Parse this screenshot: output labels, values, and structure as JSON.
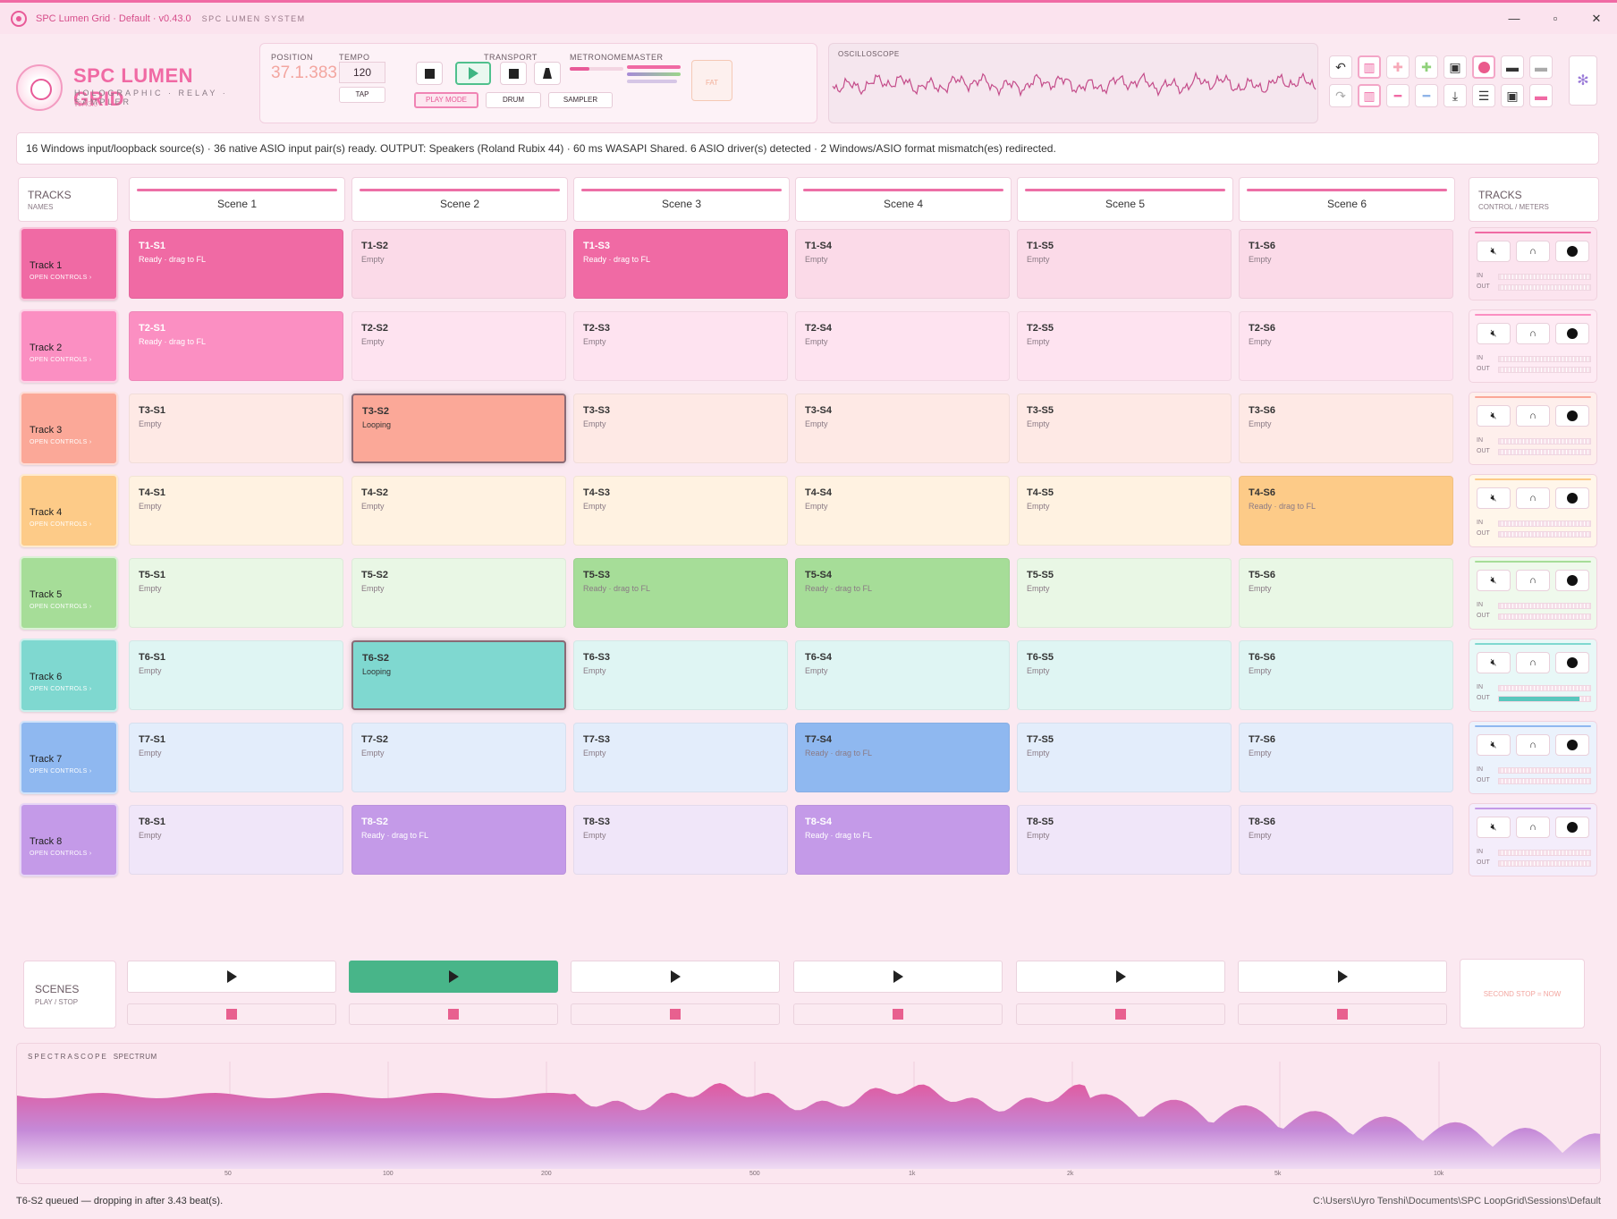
{
  "window": {
    "title": "SPC Lumen Grid · Default · v0.43.0",
    "subtitle": "SPC LUMEN SYSTEM",
    "controls": {
      "minimize": "—",
      "maximize": "▫",
      "close": "✕"
    }
  },
  "logo": {
    "name": "SPC LUMEN GRID",
    "tagline": "HOLOGRAPHIC · RELAY · SAMPLER",
    "version": "v0.43.0"
  },
  "transport": {
    "position_label": "POSITION",
    "position_value": "37.1.383",
    "tempo_label": "TEMPO",
    "tempo_value": "120",
    "tap_label": "TAP",
    "transport_label": "TRANSPORT",
    "modes": [
      "PLAY MODE",
      "DRUM",
      "SAMPLER"
    ],
    "active_mode": "PLAY MODE",
    "metronome_label": "METRONOME",
    "master_label": "MASTER",
    "fat_label": "FAT"
  },
  "oscilloscope": {
    "label": "OSCILLOSCOPE"
  },
  "status_message": "16 Windows input/loopback source(s) · 36 native ASIO input pair(s) ready. OUTPUT: Speakers (Roland Rubix 44) · 60 ms WASAPI Shared. 6 ASIO driver(s) detected · 2 Windows/ASIO format mismatch(es) redirected.",
  "grid": {
    "tracks_header": {
      "title": "TRACKS",
      "subtitle": "NAMES"
    },
    "controls_header": {
      "title": "TRACKS",
      "subtitle": "CONTROL / METERS"
    },
    "scenes": [
      "Scene 1",
      "Scene 2",
      "Scene 3",
      "Scene 4",
      "Scene 5",
      "Scene 6"
    ],
    "open_controls": "OPEN CONTROLS ›",
    "in_label": "IN",
    "out_label": "OUT",
    "tracks": [
      {
        "name": "Track 1",
        "color": "#f06aa4",
        "clips": [
          {
            "id": "T1-S1",
            "status": "Ready · drag to FL",
            "state": "ready"
          },
          {
            "id": "T1-S2",
            "status": "Empty",
            "state": "empty"
          },
          {
            "id": "T1-S3",
            "status": "Ready · drag to FL",
            "state": "ready"
          },
          {
            "id": "T1-S4",
            "status": "Empty",
            "state": "empty"
          },
          {
            "id": "T1-S5",
            "status": "Empty",
            "state": "empty"
          },
          {
            "id": "T1-S6",
            "status": "Empty",
            "state": "empty"
          }
        ]
      },
      {
        "name": "Track 2",
        "color": "#fb8fc2",
        "clips": [
          {
            "id": "T2-S1",
            "status": "Ready · drag to FL",
            "state": "ready"
          },
          {
            "id": "T2-S2",
            "status": "Empty",
            "state": "empty"
          },
          {
            "id": "T2-S3",
            "status": "Empty",
            "state": "empty"
          },
          {
            "id": "T2-S4",
            "status": "Empty",
            "state": "empty"
          },
          {
            "id": "T2-S5",
            "status": "Empty",
            "state": "empty"
          },
          {
            "id": "T2-S6",
            "status": "Empty",
            "state": "empty"
          }
        ]
      },
      {
        "name": "Track 3",
        "color": "#fba898",
        "clips": [
          {
            "id": "T3-S1",
            "status": "Empty",
            "state": "empty"
          },
          {
            "id": "T3-S2",
            "status": "Looping",
            "state": "loop"
          },
          {
            "id": "T3-S3",
            "status": "Empty",
            "state": "empty"
          },
          {
            "id": "T3-S4",
            "status": "Empty",
            "state": "empty"
          },
          {
            "id": "T3-S5",
            "status": "Empty",
            "state": "empty"
          },
          {
            "id": "T3-S6",
            "status": "Empty",
            "state": "empty"
          }
        ]
      },
      {
        "name": "Track 4",
        "color": "#fdcb88",
        "clips": [
          {
            "id": "T4-S1",
            "status": "Empty",
            "state": "empty"
          },
          {
            "id": "T4-S2",
            "status": "Empty",
            "state": "empty"
          },
          {
            "id": "T4-S3",
            "status": "Empty",
            "state": "empty"
          },
          {
            "id": "T4-S4",
            "status": "Empty",
            "state": "empty"
          },
          {
            "id": "T4-S5",
            "status": "Empty",
            "state": "empty"
          },
          {
            "id": "T4-S6",
            "status": "Ready · drag to FL",
            "state": "ready"
          }
        ]
      },
      {
        "name": "Track 5",
        "color": "#a6dd98",
        "clips": [
          {
            "id": "T5-S1",
            "status": "Empty",
            "state": "empty"
          },
          {
            "id": "T5-S2",
            "status": "Empty",
            "state": "empty"
          },
          {
            "id": "T5-S3",
            "status": "Ready · drag to FL",
            "state": "ready"
          },
          {
            "id": "T5-S4",
            "status": "Ready · drag to FL",
            "state": "ready"
          },
          {
            "id": "T5-S5",
            "status": "Empty",
            "state": "empty"
          },
          {
            "id": "T5-S6",
            "status": "Empty",
            "state": "empty"
          }
        ]
      },
      {
        "name": "Track 6",
        "color": "#7fd8d0",
        "clips": [
          {
            "id": "T6-S1",
            "status": "Empty",
            "state": "empty"
          },
          {
            "id": "T6-S2",
            "status": "Looping",
            "state": "loop"
          },
          {
            "id": "T6-S3",
            "status": "Empty",
            "state": "empty"
          },
          {
            "id": "T6-S4",
            "status": "Empty",
            "state": "empty"
          },
          {
            "id": "T6-S5",
            "status": "Empty",
            "state": "empty"
          },
          {
            "id": "T6-S6",
            "status": "Empty",
            "state": "empty"
          }
        ]
      },
      {
        "name": "Track 7",
        "color": "#8fb8f0",
        "clips": [
          {
            "id": "T7-S1",
            "status": "Empty",
            "state": "empty"
          },
          {
            "id": "T7-S2",
            "status": "Empty",
            "state": "empty"
          },
          {
            "id": "T7-S3",
            "status": "Empty",
            "state": "empty"
          },
          {
            "id": "T7-S4",
            "status": "Ready · drag to FL",
            "state": "ready"
          },
          {
            "id": "T7-S5",
            "status": "Empty",
            "state": "empty"
          },
          {
            "id": "T7-S6",
            "status": "Empty",
            "state": "empty"
          }
        ]
      },
      {
        "name": "Track 8",
        "color": "#c49ae8",
        "clips": [
          {
            "id": "T8-S1",
            "status": "Empty",
            "state": "empty"
          },
          {
            "id": "T8-S2",
            "status": "Ready · drag to FL",
            "state": "ready"
          },
          {
            "id": "T8-S3",
            "status": "Empty",
            "state": "empty"
          },
          {
            "id": "T8-S4",
            "status": "Ready · drag to FL",
            "state": "ready"
          },
          {
            "id": "T8-S5",
            "status": "Empty",
            "state": "empty"
          },
          {
            "id": "T8-S6",
            "status": "Empty",
            "state": "empty"
          }
        ]
      }
    ]
  },
  "scene_launch": {
    "title": "SCENES",
    "subtitle": "PLAY / STOP",
    "active_index": 1,
    "second_stop": "SECOND STOP = NOW"
  },
  "spectrum": {
    "label": "SPECTRASCOPE",
    "sublabel": "SPECTRUM",
    "ticks": [
      "50",
      "100",
      "200",
      "500",
      "1k",
      "2k",
      "5k",
      "10k"
    ]
  },
  "footer": {
    "message": "T6-S2 queued — dropping in after 3.43 beat(s).",
    "path": "C:\\Users\\Uyro Tenshi\\Documents\\SPC LoopGrid\\Sessions\\Default"
  }
}
